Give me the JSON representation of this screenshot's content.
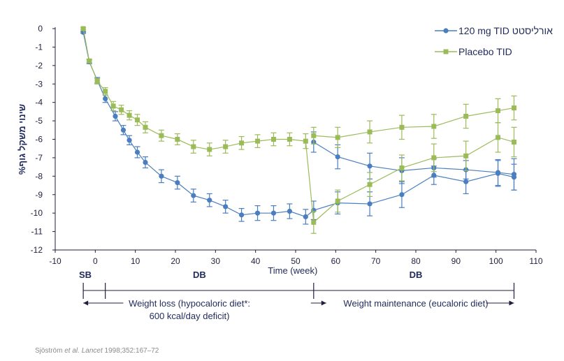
{
  "chart_data": {
    "type": "line",
    "title": "",
    "xlabel": "Time (week)",
    "ylabel": "%שינוי משקל גוף",
    "xlim": [
      -10,
      110
    ],
    "ylim": [
      -12,
      0
    ],
    "xticks": [
      -10,
      0,
      10,
      20,
      30,
      40,
      50,
      60,
      70,
      80,
      90,
      100,
      110
    ],
    "yticks": [
      0,
      -1,
      -2,
      -3,
      -4,
      -5,
      -6,
      -7,
      -8,
      -9,
      -10,
      -11,
      -12
    ],
    "legend_position": "top-right",
    "series": [
      {
        "name": "120 mg TID אורליסטט",
        "color": "#4a7ebf",
        "marker": "circle",
        "x": [
          -3,
          -1.5,
          0.5,
          2.5,
          5,
          7,
          8.5,
          10.5,
          12.5,
          16.5,
          20.5,
          24.5,
          28.5,
          32.5,
          36.5,
          40.5,
          44.5,
          48.5,
          52.5,
          54.5,
          60.5,
          68.5,
          76.5,
          84.5,
          92.5,
          100.5,
          104.5
        ],
        "y": [
          -0.2,
          -1.8,
          -2.8,
          -3.8,
          -4.75,
          -5.5,
          -6.05,
          -6.7,
          -7.25,
          -8.0,
          -8.35,
          -9.05,
          -9.3,
          -9.65,
          -10.1,
          -10.0,
          -10.0,
          -9.9,
          -10.2,
          -9.85,
          -9.45,
          -9.5,
          -9.0,
          -7.95,
          -8.3,
          -7.85,
          -8.05
        ],
        "err": [
          0.05,
          0.1,
          0.15,
          0.2,
          0.25,
          0.25,
          0.25,
          0.3,
          0.3,
          0.35,
          0.35,
          0.35,
          0.35,
          0.35,
          0.35,
          0.4,
          0.4,
          0.4,
          0.4,
          0.5,
          0.6,
          0.65,
          0.7,
          0.5,
          0.65,
          0.7,
          0.7
        ],
        "continuation": {
          "x": [
            54.5,
            60.5,
            68.5,
            76.5,
            84.5,
            92.5,
            100.5,
            104.5
          ],
          "y": [
            -6.15,
            -6.95,
            -7.45,
            -7.7,
            -7.55,
            -7.65,
            -7.8,
            -7.9
          ],
          "err": [
            0.55,
            0.65,
            0.7,
            0.7,
            0.5,
            0.5,
            0.7,
            0.85
          ]
        }
      },
      {
        "name": "Placebo TID",
        "color": "#9bbb59",
        "marker": "square",
        "x": [
          -3,
          -1.5,
          0.5,
          2.5,
          4.5,
          6.5,
          8.5,
          10.5,
          12.5,
          16.5,
          20.5,
          24.5,
          28.5,
          32.5,
          36.5,
          40.5,
          44.5,
          48.5,
          52.5,
          54.5,
          60.5,
          68.5,
          76.5,
          84.5,
          92.5,
          100.5,
          104.5
        ],
        "y": [
          0,
          -1.75,
          -2.85,
          -3.4,
          -4.2,
          -4.4,
          -4.7,
          -4.95,
          -5.35,
          -5.8,
          -6.0,
          -6.4,
          -6.55,
          -6.4,
          -6.2,
          -6.1,
          -6.0,
          -6.0,
          -6.1,
          -10.5,
          -9.35,
          -8.45,
          -7.55,
          -7.0,
          -6.9,
          -5.9,
          -6.15
        ],
        "err": [
          0.05,
          0.1,
          0.15,
          0.2,
          0.25,
          0.25,
          0.25,
          0.3,
          0.3,
          0.3,
          0.3,
          0.35,
          0.35,
          0.35,
          0.35,
          0.35,
          0.35,
          0.35,
          0.4,
          0.6,
          0.6,
          0.65,
          0.7,
          0.75,
          0.8,
          0.8,
          0.8
        ],
        "continuation": {
          "x": [
            54.5,
            60.5,
            68.5,
            76.5,
            84.5,
            92.5,
            100.5,
            104.5
          ],
          "y": [
            -5.8,
            -5.9,
            -5.6,
            -5.35,
            -5.3,
            -4.75,
            -4.45,
            -4.3
          ],
          "err": [
            0.45,
            0.55,
            0.6,
            0.65,
            0.65,
            0.65,
            0.65,
            0.65
          ]
        }
      }
    ],
    "phases": [
      {
        "label": "SB",
        "x": -2.5
      },
      {
        "label": "DB",
        "x": 26
      },
      {
        "label": "DB",
        "x": 80
      }
    ],
    "phase_notes": {
      "loss": [
        "Weight loss (hypocaloric diet*:",
        "600 kcal/day deficit)"
      ],
      "maintenance": "Weight maintenance (eucaloric diet)"
    }
  },
  "citation": {
    "authors": "Sjöström",
    "etal": "et al.",
    "journal": "Lancet",
    "ref": "1998;352:167–72"
  }
}
